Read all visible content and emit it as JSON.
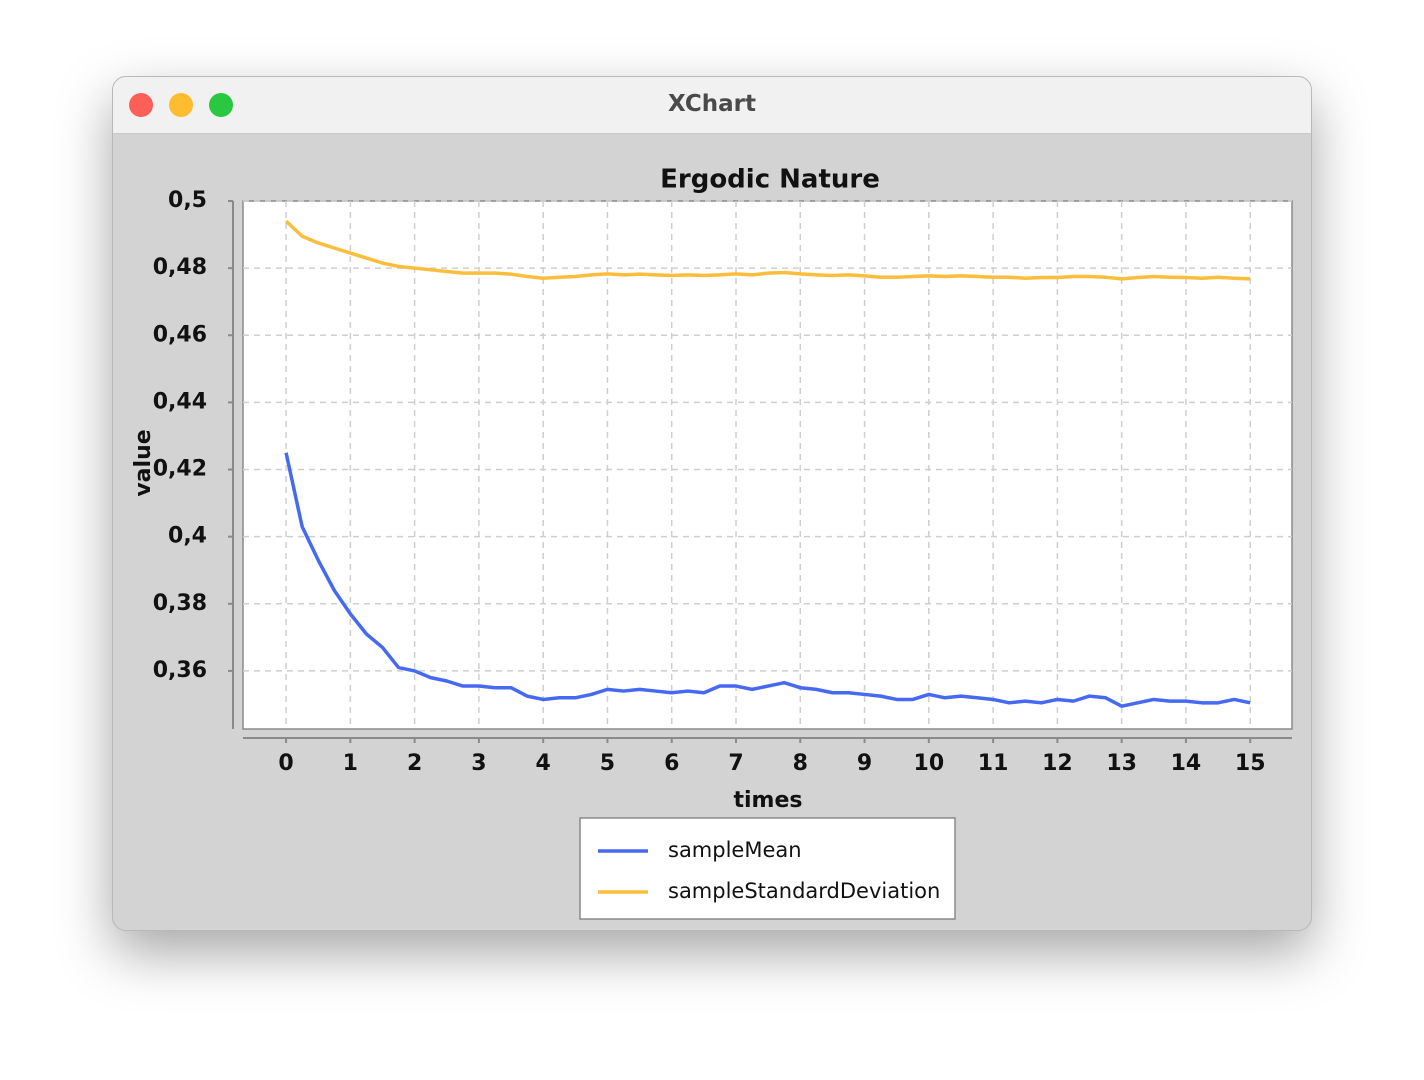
{
  "window": {
    "title": "XChart"
  },
  "chart_data": {
    "type": "line",
    "title": "Ergodic Nature",
    "x_label": "times",
    "y_label": "value",
    "x": [
      0,
      0.25,
      0.5,
      0.75,
      1,
      1.25,
      1.5,
      1.75,
      2,
      2.25,
      2.5,
      2.75,
      3,
      3.25,
      3.5,
      3.75,
      4,
      4.25,
      4.5,
      4.75,
      5,
      5.25,
      5.5,
      5.75,
      6,
      6.25,
      6.5,
      6.75,
      7,
      7.25,
      7.5,
      7.75,
      8,
      8.25,
      8.5,
      8.75,
      9,
      9.25,
      9.5,
      9.75,
      10,
      10.25,
      10.5,
      10.75,
      11,
      11.25,
      11.5,
      11.75,
      12,
      12.25,
      12.5,
      12.75,
      13,
      13.25,
      13.5,
      13.75,
      14,
      14.25,
      14.5,
      14.75,
      15
    ],
    "series": [
      {
        "name": "sampleMean",
        "color": "#4669f2",
        "values": [
          0.425,
          0.403,
          0.393,
          0.384,
          0.377,
          0.371,
          0.367,
          0.361,
          0.36,
          0.358,
          0.357,
          0.3555,
          0.3555,
          0.355,
          0.355,
          0.3525,
          0.3515,
          0.352,
          0.352,
          0.353,
          0.3545,
          0.354,
          0.3545,
          0.354,
          0.3535,
          0.354,
          0.3535,
          0.3555,
          0.3555,
          0.3545,
          0.3555,
          0.3565,
          0.355,
          0.3545,
          0.3535,
          0.3535,
          0.353,
          0.3525,
          0.3515,
          0.3515,
          0.353,
          0.352,
          0.3525,
          0.352,
          0.3515,
          0.3505,
          0.351,
          0.3505,
          0.3515,
          0.351,
          0.3525,
          0.352,
          0.3495,
          0.3505,
          0.3515,
          0.351,
          0.351,
          0.3505,
          0.3505,
          0.3515,
          0.3505
        ]
      },
      {
        "name": "sampleStandardDeviation",
        "color": "#fbbe3c",
        "values": [
          0.494,
          0.4895,
          0.4875,
          0.486,
          0.4845,
          0.483,
          0.4815,
          0.4805,
          0.48,
          0.4795,
          0.479,
          0.4785,
          0.4785,
          0.4785,
          0.4782,
          0.4775,
          0.477,
          0.4773,
          0.4775,
          0.478,
          0.4783,
          0.478,
          0.4782,
          0.478,
          0.4778,
          0.478,
          0.4778,
          0.478,
          0.4783,
          0.478,
          0.4785,
          0.4787,
          0.4783,
          0.478,
          0.4778,
          0.478,
          0.4777,
          0.4773,
          0.4773,
          0.4775,
          0.4777,
          0.4775,
          0.4777,
          0.4775,
          0.4773,
          0.4773,
          0.477,
          0.4772,
          0.4772,
          0.4775,
          0.4775,
          0.4773,
          0.4768,
          0.4772,
          0.4775,
          0.4773,
          0.4772,
          0.477,
          0.4773,
          0.477,
          0.4768
        ]
      }
    ],
    "xlim": [
      -0.67,
      15.65
    ],
    "ylim": [
      0.3427,
      0.5
    ],
    "xticks": [
      0,
      1,
      2,
      3,
      4,
      5,
      6,
      7,
      8,
      9,
      10,
      11,
      12,
      13,
      14,
      15
    ],
    "yticks": [
      {
        "value": 0.36,
        "label": "0,36"
      },
      {
        "value": 0.38,
        "label": "0,38"
      },
      {
        "value": 0.4,
        "label": "0,4"
      },
      {
        "value": 0.42,
        "label": "0,42"
      },
      {
        "value": 0.44,
        "label": "0,44"
      },
      {
        "value": 0.46,
        "label": "0,46"
      },
      {
        "value": 0.48,
        "label": "0,48"
      },
      {
        "value": 0.5,
        "label": "0,5"
      }
    ],
    "grid": true
  }
}
